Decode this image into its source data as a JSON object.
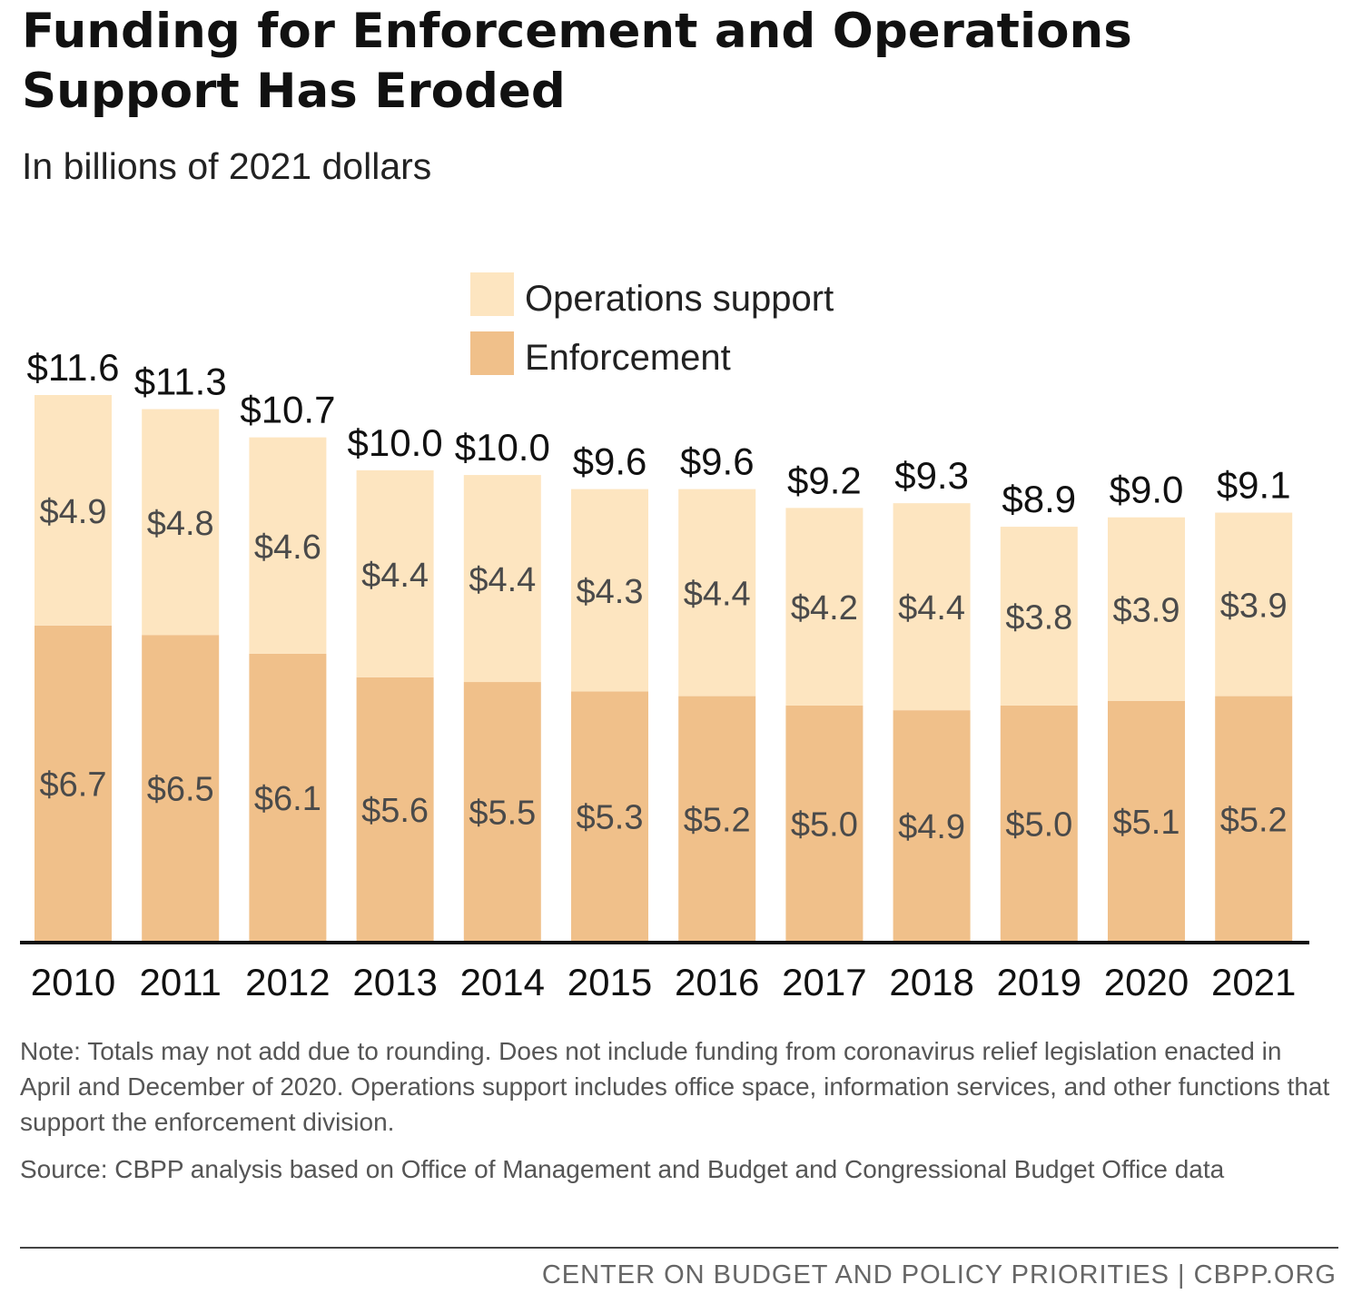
{
  "chart_data": {
    "type": "bar",
    "stacked": true,
    "title": "Funding for Enforcement and Operations Support Has Eroded",
    "subtitle": "In billions of 2021 dollars",
    "categories": [
      "2010",
      "2011",
      "2012",
      "2013",
      "2014",
      "2015",
      "2016",
      "2017",
      "2018",
      "2019",
      "2020",
      "2021"
    ],
    "series": [
      {
        "name": "Enforcement",
        "color": "#f0c08a",
        "values": [
          6.7,
          6.5,
          6.1,
          5.6,
          5.5,
          5.3,
          5.2,
          5.0,
          4.9,
          5.0,
          5.1,
          5.2
        ],
        "labels": [
          "$6.7",
          "$6.5",
          "$6.1",
          "$5.6",
          "$5.5",
          "$5.3",
          "$5.2",
          "$5.0",
          "$4.9",
          "$5.0",
          "$5.1",
          "$5.2"
        ]
      },
      {
        "name": "Operations support",
        "color": "#fde5c0",
        "values": [
          4.9,
          4.8,
          4.6,
          4.4,
          4.4,
          4.3,
          4.4,
          4.2,
          4.4,
          3.8,
          3.9,
          3.9
        ],
        "labels": [
          "$4.9",
          "$4.8",
          "$4.6",
          "$4.4",
          "$4.4",
          "$4.3",
          "$4.4",
          "$4.2",
          "$4.4",
          "$3.8",
          "$3.9",
          "$3.9"
        ]
      }
    ],
    "totals": [
      11.6,
      11.3,
      10.7,
      10.0,
      10.0,
      9.6,
      9.6,
      9.2,
      9.3,
      8.9,
      9.0,
      9.1
    ],
    "total_labels": [
      "$11.6",
      "$11.3",
      "$10.7",
      "$10.0",
      "$10.0",
      "$9.6",
      "$9.6",
      "$9.2",
      "$9.3",
      "$8.9",
      "$9.0",
      "$9.1"
    ],
    "legend": [
      "Operations support",
      "Enforcement"
    ],
    "legend_position": "top-center",
    "ylim": [
      0,
      11.6
    ],
    "grid": false,
    "xlabel": "",
    "ylabel": ""
  },
  "note": "Note: Totals may not add due to rounding. Does not include funding from coronavirus relief legislation enacted in April and December of 2020. Operations support includes office space, information services, and other functions that support the enforcement division.",
  "source": "Source: CBPP analysis based on Office of Management and Budget and Congressional Budget Office data",
  "footer": "CENTER ON BUDGET AND POLICY PRIORITIES | CBPP.ORG"
}
